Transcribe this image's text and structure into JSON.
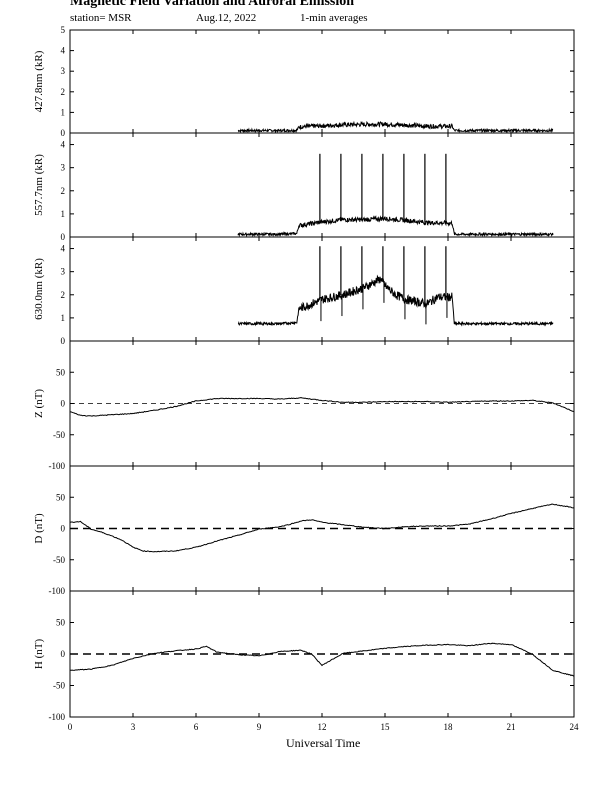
{
  "title": "Magnetic Field Variation and Auroral Emission",
  "subtitle": {
    "station": "station= MSR",
    "date": "Aug.12, 2022",
    "averaging": "1-min averages"
  },
  "chart_data": [
    {
      "type": "line",
      "ylabel": "427.8nm (kR)",
      "ylim": [
        0,
        5
      ],
      "yticks": [
        0,
        1,
        2,
        3,
        4,
        5
      ],
      "baseline": null,
      "series": [
        {
          "x": [
            8,
            9,
            10,
            10.8,
            10.9,
            12,
            13,
            14,
            15,
            16,
            17,
            18.2,
            18.3,
            19,
            20,
            21,
            22,
            23
          ],
          "y": [
            0.12,
            0.12,
            0.12,
            0.13,
            0.3,
            0.35,
            0.4,
            0.42,
            0.43,
            0.38,
            0.33,
            0.32,
            0.12,
            0.12,
            0.12,
            0.12,
            0.12,
            0.12
          ]
        }
      ]
    },
    {
      "type": "line",
      "ylabel": "557.7nm (kR)",
      "ylim": [
        0,
        4.5
      ],
      "yticks": [
        0,
        1,
        2,
        3,
        4
      ],
      "baseline": null,
      "series": [
        {
          "x": [
            8,
            9,
            10,
            10.8,
            10.9,
            12,
            13,
            14,
            15,
            16,
            17,
            18.2,
            18.3,
            19,
            20,
            21,
            22,
            23
          ],
          "y": [
            0.12,
            0.12,
            0.12,
            0.15,
            0.5,
            0.65,
            0.75,
            0.75,
            0.8,
            0.72,
            0.62,
            0.6,
            0.12,
            0.12,
            0.12,
            0.12,
            0.12,
            0.12
          ]
        }
      ],
      "spikes": {
        "x": [
          11.9,
          12.9,
          13.9,
          14.9,
          15.9,
          16.9,
          17.9
        ],
        "y": 3.6
      }
    },
    {
      "type": "line",
      "ylabel": "630.0nm (kR)",
      "ylim": [
        0,
        4.5
      ],
      "yticks": [
        0,
        1,
        2,
        3,
        4
      ],
      "baseline": null,
      "series": [
        {
          "x": [
            8,
            9,
            10,
            10.8,
            10.9,
            11.5,
            12,
            13,
            14,
            14.8,
            15,
            15.5,
            16,
            16.5,
            17,
            17.5,
            18.2,
            18.3,
            19,
            20,
            21,
            22,
            23
          ],
          "y": [
            0.75,
            0.75,
            0.75,
            0.8,
            1.4,
            1.6,
            1.8,
            2.0,
            2.3,
            2.7,
            2.4,
            2.0,
            1.8,
            1.7,
            1.6,
            1.9,
            1.9,
            0.75,
            0.75,
            0.75,
            0.75,
            0.75,
            0.75
          ]
        }
      ],
      "spikes": {
        "x": [
          11.9,
          12.9,
          13.9,
          14.9,
          15.9,
          16.9,
          17.9
        ],
        "y": 4.1
      }
    },
    {
      "type": "line",
      "ylabel": "Z (nT)",
      "ylim": [
        -100,
        100
      ],
      "yticks": [
        -100,
        -50,
        0,
        50
      ],
      "baseline": "dashed-thin",
      "series": [
        {
          "x": [
            0,
            0.5,
            1,
            2,
            3,
            4,
            5,
            6,
            7,
            8,
            9,
            10,
            11,
            12,
            13,
            14,
            15,
            16,
            17,
            18,
            19,
            20,
            21,
            22,
            23,
            24
          ],
          "y": [
            -13,
            -19,
            -20,
            -18,
            -16,
            -11,
            -5,
            4,
            8,
            8,
            8,
            7,
            9,
            5,
            2,
            2,
            3,
            3,
            3,
            2,
            3,
            4,
            4,
            5,
            1,
            -13
          ]
        }
      ]
    },
    {
      "type": "line",
      "ylabel": "D (nT)",
      "ylim": [
        -100,
        100
      ],
      "yticks": [
        -100,
        -50,
        0,
        50
      ],
      "baseline": "dashed-thick",
      "series": [
        {
          "x": [
            0,
            0.5,
            1,
            1.5,
            2,
            2.5,
            3,
            3.5,
            4,
            5,
            6,
            7,
            8,
            9,
            10,
            10.5,
            11,
            11.5,
            12,
            13,
            14,
            15,
            16,
            17,
            18,
            19,
            20,
            21,
            22,
            23,
            24
          ],
          "y": [
            10,
            11,
            -1,
            -6,
            -12,
            -19,
            -30,
            -36,
            -37,
            -36,
            -30,
            -20,
            -11,
            -1,
            3,
            7,
            12,
            14,
            10,
            6,
            2,
            0,
            3,
            4,
            4,
            7,
            15,
            24,
            32,
            39,
            33
          ]
        }
      ]
    },
    {
      "type": "line",
      "ylabel": "H (nT)",
      "ylim": [
        -100,
        100
      ],
      "yticks": [
        -100,
        -50,
        0,
        50
      ],
      "baseline": "dashed-thick",
      "series": [
        {
          "x": [
            0,
            1,
            2,
            3,
            4,
            5,
            6,
            6.5,
            7,
            8,
            9,
            10,
            11,
            11.5,
            12,
            13,
            14,
            15,
            16,
            17,
            18,
            19,
            19.5,
            20,
            21,
            22,
            23,
            24
          ],
          "y": [
            -26,
            -24,
            -18,
            -7,
            1,
            5,
            8,
            12,
            3,
            -1,
            -3,
            4,
            6,
            0,
            -18,
            1,
            5,
            9,
            12,
            14,
            15,
            13,
            15,
            17,
            15,
            0,
            -26,
            -35
          ]
        }
      ]
    }
  ],
  "xaxis": {
    "label": "Universal Time",
    "ticks": [
      0,
      3,
      6,
      9,
      12,
      15,
      18,
      21,
      24
    ],
    "range": [
      0,
      24
    ]
  }
}
